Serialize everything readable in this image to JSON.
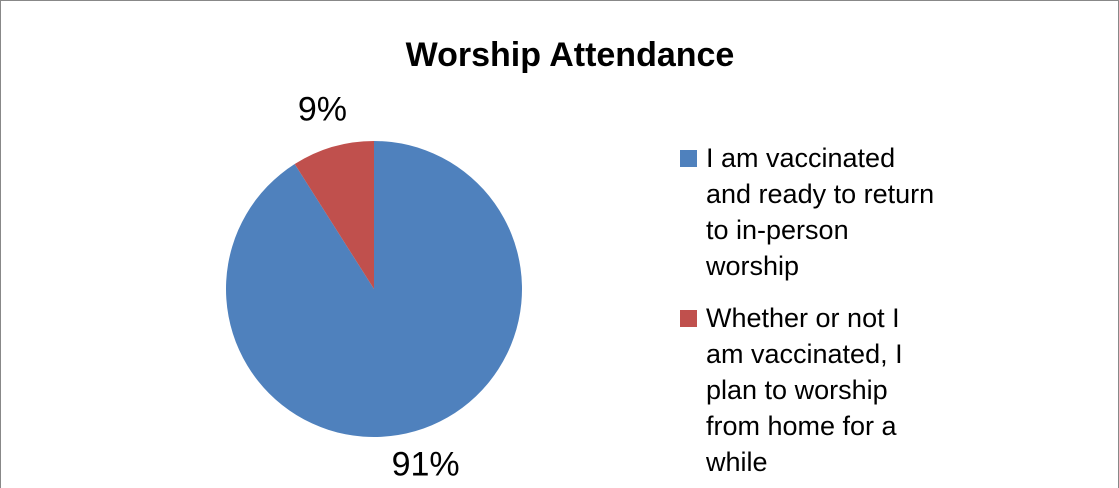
{
  "chart_data": {
    "type": "pie",
    "title": "Worship Attendance",
    "categories": [
      "I am vaccinated and ready to return to in-person worship",
      "Whether or not I am vaccinated, I plan to worship from home for a while"
    ],
    "values": [
      91,
      9
    ],
    "value_labels": [
      "91%",
      "9%"
    ],
    "colors": [
      "#4f81bd",
      "#c0504d"
    ],
    "legend": "right"
  }
}
